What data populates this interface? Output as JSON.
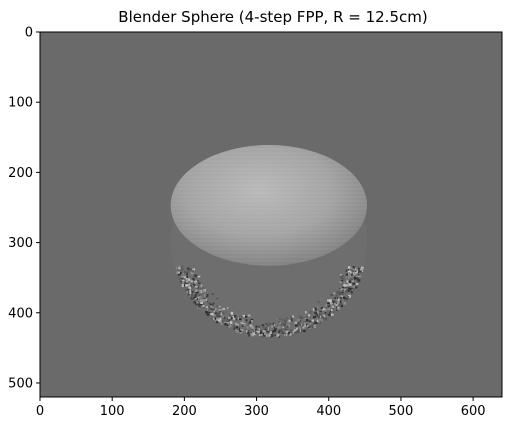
{
  "chart_data": {
    "type": "heatmap",
    "title": "Blender Sphere (4-step FPP, R = 12.5cm)",
    "xlabel": "",
    "ylabel": "",
    "image_width": 640,
    "image_height": 520,
    "xlim": [
      0,
      640
    ],
    "ylim": [
      520,
      0
    ],
    "xticks": [
      0,
      100,
      200,
      300,
      400,
      500,
      600
    ],
    "yticks": [
      0,
      100,
      200,
      300,
      400,
      500
    ],
    "grid": false,
    "colormap": "gray",
    "background_color": "#6a6a6a",
    "sphere": {
      "center_x": 317,
      "center_y": 297,
      "radius": 136,
      "upper_boundary_y": 333,
      "fill_light": "#b7b7b7",
      "fill_dark": "#767676",
      "rim_texture_color": "#3c3c3c"
    }
  }
}
